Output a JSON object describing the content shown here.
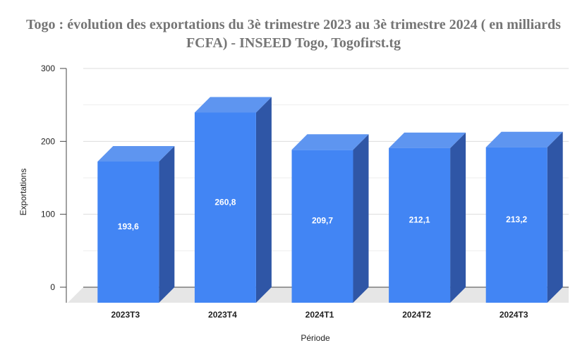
{
  "chart_data": {
    "type": "bar",
    "title_line1": "Togo : évolution des exportations du 3è trimestre 2023 au 3è trimestre 2024 ( en milliards",
    "title_line2": "FCFA)  - INSEED Togo, Togofirst.tg",
    "xlabel": "Période",
    "ylabel": "Exportations",
    "categories": [
      "2023T3",
      "2023T4",
      "2024T1",
      "2024T2",
      "2024T3"
    ],
    "values": [
      193.6,
      260.8,
      209.7,
      212.1,
      213.2
    ],
    "value_labels": [
      "193,6",
      "260,8",
      "209,7",
      "212,1",
      "213,2"
    ],
    "yticks": [
      0,
      100,
      200,
      300
    ],
    "ylim": [
      0,
      300
    ],
    "grid": true,
    "legend": "none",
    "colors": {
      "front": "#4285f4",
      "top": "#5e95f0",
      "side": "#2f56a6",
      "floor": "#e6e6e6",
      "grid": "#dddddd"
    }
  }
}
